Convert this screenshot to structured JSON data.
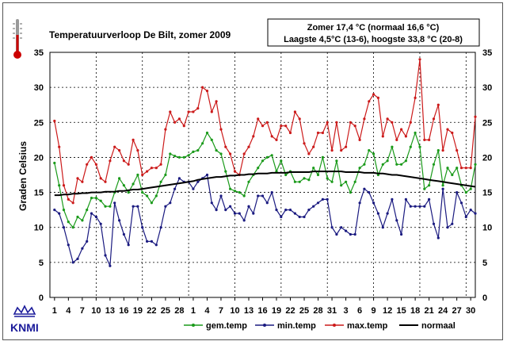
{
  "chart_data": {
    "type": "line",
    "title": "Temperatuurverloop De Bilt, zomer 2009",
    "ylabel": "Graden Celsius",
    "ylim": [
      0,
      35
    ],
    "yticks": [
      0,
      5,
      10,
      15,
      20,
      25,
      30,
      35
    ],
    "xtick_labels": [
      "1",
      "4",
      "7",
      "10",
      "13",
      "16",
      "19",
      "22",
      "25",
      "28",
      "1",
      "4",
      "7",
      "10",
      "13",
      "16",
      "19",
      "22",
      "25",
      "28",
      "31",
      "3",
      "6",
      "9",
      "12",
      "15",
      "18",
      "21",
      "24",
      "27",
      "30"
    ],
    "x": [
      1,
      2,
      3,
      4,
      5,
      6,
      7,
      8,
      9,
      10,
      11,
      12,
      13,
      14,
      15,
      16,
      17,
      18,
      19,
      20,
      21,
      22,
      23,
      24,
      25,
      26,
      27,
      28,
      29,
      30,
      31,
      32,
      33,
      34,
      35,
      36,
      37,
      38,
      39,
      40,
      41,
      42,
      43,
      44,
      45,
      46,
      47,
      48,
      49,
      50,
      51,
      52,
      53,
      54,
      55,
      56,
      57,
      58,
      59,
      60,
      61,
      62,
      63,
      64,
      65,
      66,
      67,
      68,
      69,
      70,
      71,
      72,
      73,
      74,
      75,
      76,
      77,
      78,
      79,
      80,
      81,
      82,
      83,
      84,
      85,
      86,
      87,
      88,
      89,
      90,
      91,
      92
    ],
    "grid": true,
    "legend_position": "bottom",
    "series": [
      {
        "name": "gem.temp",
        "color": "#1a9a1a",
        "values": [
          19.2,
          16.0,
          12.5,
          10.8,
          10.0,
          11.5,
          11.0,
          12.5,
          14.2,
          14.2,
          13.8,
          13.0,
          13.0,
          15.0,
          17.0,
          16.0,
          15.0,
          16.2,
          17.5,
          15.0,
          14.5,
          13.5,
          14.5,
          16.5,
          17.5,
          20.5,
          20.2,
          20.0,
          20.0,
          20.3,
          20.8,
          21.0,
          22.0,
          23.5,
          22.5,
          21.0,
          20.5,
          18.0,
          15.5,
          15.2,
          15.0,
          14.5,
          16.5,
          17.5,
          18.5,
          19.5,
          20.0,
          20.3,
          18.0,
          19.5,
          17.5,
          18.0,
          16.5,
          16.5,
          17.0,
          16.8,
          18.5,
          17.5,
          20.0,
          17.0,
          16.5,
          19.5,
          16.0,
          16.5,
          15.0,
          16.5,
          18.5,
          19.0,
          21.0,
          20.5,
          17.5,
          19.0,
          19.5,
          21.5,
          19.0,
          19.0,
          19.5,
          21.5,
          23.5,
          21.5,
          15.5,
          16.0,
          19.0,
          21.0,
          16.0,
          18.5,
          17.5,
          18.5,
          16.0,
          15.0,
          15.5,
          19.0
        ]
      },
      {
        "name": "min.temp",
        "color": "#1a1a80",
        "values": [
          12.5,
          12.0,
          10.0,
          7.5,
          5.0,
          5.5,
          7.0,
          8.0,
          12.0,
          11.5,
          10.5,
          6.0,
          4.5,
          13.5,
          11.0,
          9.0,
          7.5,
          13.0,
          13.0,
          10.0,
          8.0,
          8.0,
          7.5,
          10.0,
          13.0,
          13.5,
          15.5,
          17.0,
          16.5,
          16.5,
          15.5,
          16.5,
          17.0,
          17.5,
          13.5,
          12.5,
          14.5,
          12.5,
          13.0,
          12.0,
          12.0,
          11.0,
          13.0,
          12.0,
          14.5,
          14.5,
          13.5,
          15.0,
          12.5,
          11.5,
          12.5,
          12.5,
          12.0,
          11.5,
          11.5,
          12.5,
          13.0,
          13.5,
          14.0,
          14.0,
          10.0,
          9.0,
          10.0,
          9.5,
          9.0,
          9.0,
          13.5,
          15.5,
          15.0,
          13.5,
          12.0,
          10.0,
          12.0,
          14.0,
          11.0,
          9.0,
          14.0,
          13.0,
          13.0,
          13.0,
          13.0,
          14.0,
          10.5,
          8.5,
          15.5,
          10.0,
          10.5,
          15.0,
          13.5,
          11.5,
          12.5,
          12.0
        ]
      },
      {
        "name": "max.temp",
        "color": "#cc1a1a",
        "values": [
          25.2,
          21.5,
          16.0,
          14.0,
          13.5,
          17.0,
          16.5,
          19.0,
          20.0,
          19.0,
          17.0,
          16.5,
          19.5,
          21.5,
          21.0,
          19.5,
          19.0,
          22.5,
          21.0,
          17.5,
          18.0,
          18.5,
          18.5,
          19.0,
          24.0,
          26.5,
          25.0,
          25.5,
          24.5,
          26.5,
          26.5,
          27.0,
          30.0,
          29.5,
          26.5,
          28.0,
          24.0,
          21.5,
          20.5,
          18.0,
          17.5,
          20.5,
          21.5,
          23.0,
          25.5,
          24.5,
          25.0,
          23.0,
          22.5,
          24.5,
          24.5,
          23.5,
          26.5,
          25.5,
          22.0,
          20.5,
          21.5,
          23.5,
          23.5,
          25.0,
          21.0,
          25.0,
          21.0,
          21.5,
          25.0,
          24.5,
          22.5,
          25.5,
          28.0,
          29.0,
          28.5,
          23.0,
          25.5,
          25.0,
          22.5,
          24.0,
          23.0,
          25.0,
          28.5,
          34.0,
          22.5,
          22.5,
          25.5,
          27.5,
          21.0,
          24.0,
          23.5,
          21.0,
          18.5,
          18.5,
          18.5,
          25.8
        ]
      },
      {
        "name": "normaal",
        "color": "#000000",
        "values": [
          14.6,
          14.6,
          14.7,
          14.7,
          14.8,
          14.8,
          14.9,
          14.9,
          15.0,
          15.0,
          15.0,
          15.1,
          15.1,
          15.1,
          15.2,
          15.2,
          15.3,
          15.4,
          15.4,
          15.5,
          15.6,
          15.7,
          15.8,
          15.9,
          16.0,
          16.1,
          16.2,
          16.3,
          16.4,
          16.5,
          16.6,
          16.8,
          16.9,
          17.0,
          17.1,
          17.2,
          17.2,
          17.3,
          17.4,
          17.4,
          17.5,
          17.5,
          17.6,
          17.6,
          17.7,
          17.7,
          17.7,
          17.8,
          17.8,
          17.8,
          17.8,
          17.9,
          17.9,
          17.9,
          17.9,
          17.9,
          18.0,
          18.0,
          18.0,
          18.0,
          18.0,
          18.0,
          18.0,
          17.9,
          17.9,
          17.9,
          17.9,
          17.8,
          17.8,
          17.8,
          17.7,
          17.7,
          17.6,
          17.5,
          17.5,
          17.4,
          17.3,
          17.2,
          17.1,
          17.0,
          16.9,
          16.8,
          16.7,
          16.6,
          16.5,
          16.4,
          16.3,
          16.2,
          16.1,
          16.0,
          15.9,
          15.8
        ]
      }
    ]
  },
  "infobox": {
    "line1": "Zomer 17,4 °C (normaal 16,6 °C)",
    "line2": "Laagste 4,5°C (13-6), hoogste  33,8 °C (20-8)"
  },
  "logo": {
    "text": "KNMI",
    "color": "#1a1a9a"
  },
  "icon": "thermometer-icon"
}
